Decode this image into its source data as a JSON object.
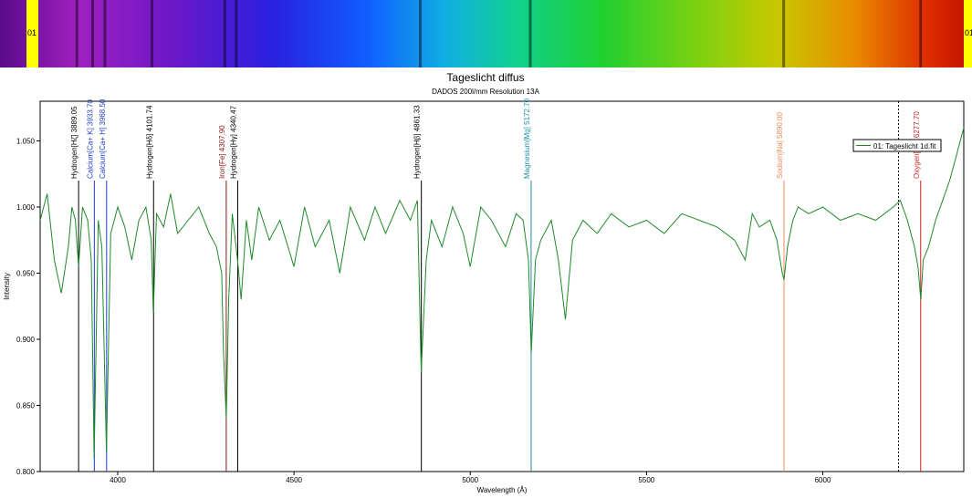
{
  "spectrum_strip": {
    "left_label": "01",
    "right_label": "01",
    "marker_color": "#ffff00"
  },
  "chart_data": {
    "type": "line",
    "title": "Tageslicht diffus",
    "subtitle": "DADOS 200l/mm Resolution 13A",
    "xlabel": "Wavelength (Å)",
    "ylabel": "Intensity",
    "xlim": [
      3780,
      6400
    ],
    "ylim": [
      0.8,
      1.08
    ],
    "x_ticks": [
      4000,
      4500,
      5000,
      5500,
      6000
    ],
    "y_ticks": [
      0.8,
      0.85,
      0.9,
      0.95,
      1.0,
      1.05
    ],
    "grid": false,
    "legend_position": "top-right",
    "series": [
      {
        "name": "01: Tageslicht 1d.fit",
        "color": "#1f8a2a",
        "x": [
          3780,
          3800,
          3820,
          3840,
          3860,
          3870,
          3880,
          3889,
          3900,
          3915,
          3925,
          3933,
          3945,
          3955,
          3968,
          3980,
          4000,
          4020,
          4040,
          4060,
          4080,
          4095,
          4101,
          4110,
          4130,
          4150,
          4170,
          4200,
          4230,
          4260,
          4280,
          4295,
          4300,
          4308,
          4315,
          4325,
          4340,
          4350,
          4365,
          4380,
          4400,
          4430,
          4460,
          4500,
          4530,
          4560,
          4600,
          4630,
          4660,
          4700,
          4730,
          4760,
          4800,
          4830,
          4850,
          4861,
          4875,
          4890,
          4920,
          4950,
          4980,
          5000,
          5030,
          5060,
          5100,
          5130,
          5150,
          5165,
          5173,
          5185,
          5200,
          5230,
          5250,
          5270,
          5290,
          5320,
          5360,
          5400,
          5450,
          5500,
          5550,
          5600,
          5650,
          5700,
          5750,
          5780,
          5800,
          5820,
          5850,
          5870,
          5885,
          5890,
          5900,
          5915,
          5930,
          5960,
          6000,
          6050,
          6100,
          6150,
          6200,
          6220,
          6240,
          6260,
          6270,
          6278,
          6285,
          6300,
          6320,
          6340,
          6360,
          6380,
          6400
        ],
        "y": [
          0.99,
          1.01,
          0.96,
          0.935,
          0.97,
          1.0,
          0.99,
          0.955,
          1.0,
          0.99,
          0.96,
          0.81,
          0.99,
          0.97,
          0.815,
          0.98,
          1.0,
          0.985,
          0.96,
          0.99,
          1.0,
          0.975,
          0.92,
          0.995,
          0.985,
          1.01,
          0.98,
          0.99,
          1.0,
          0.98,
          0.97,
          0.95,
          0.89,
          0.84,
          0.93,
          0.995,
          0.96,
          0.93,
          0.99,
          0.96,
          1.0,
          0.975,
          0.99,
          0.955,
          1.0,
          0.97,
          0.99,
          0.95,
          1.0,
          0.975,
          1.0,
          0.98,
          1.005,
          0.99,
          1.005,
          0.875,
          0.96,
          0.99,
          0.97,
          1.0,
          0.98,
          0.955,
          1.0,
          0.99,
          0.97,
          0.995,
          0.99,
          0.96,
          0.89,
          0.96,
          0.975,
          0.99,
          0.96,
          0.915,
          0.975,
          0.99,
          0.98,
          0.995,
          0.985,
          0.99,
          0.98,
          0.995,
          0.99,
          0.985,
          0.975,
          0.96,
          0.995,
          0.985,
          0.99,
          0.975,
          0.95,
          0.945,
          0.97,
          0.99,
          1.0,
          0.995,
          1.0,
          0.99,
          0.995,
          0.99,
          1.0,
          1.005,
          0.99,
          0.97,
          0.955,
          0.93,
          0.96,
          0.97,
          0.99,
          1.005,
          1.02,
          1.04,
          1.06
        ]
      }
    ],
    "annotations": [
      {
        "label": "Hydrogen[Hζ] 3889.05",
        "x": 3889.05,
        "color": "#000000"
      },
      {
        "label": "Calcium[Ca+ K] 3933.70",
        "x": 3933.7,
        "color": "#1f3fd1"
      },
      {
        "label": "Calcium[Ca+ H] 3968.50",
        "x": 3968.5,
        "color": "#1f3fd1"
      },
      {
        "label": "Hydrogen[Hδ] 4101.74",
        "x": 4101.74,
        "color": "#000000"
      },
      {
        "label": "Iron[Fe] 4307.90",
        "x": 4307.9,
        "color": "#8a1a1a"
      },
      {
        "label": "Hydrogen[Hγ] 4340.47",
        "x": 4340.47,
        "color": "#000000"
      },
      {
        "label": "Hydrogen[Hβ] 4861.33",
        "x": 4861.33,
        "color": "#000000"
      },
      {
        "label": "Magnesium[Mg] 5172.70",
        "x": 5172.7,
        "color": "#1f8fa6"
      },
      {
        "label": "Sodium[Na] 5890.00",
        "x": 5890.0,
        "color": "#f08b5a"
      },
      {
        "label": "Oxygen[O2] 6277.70",
        "x": 6277.7,
        "color": "#d11f1f"
      }
    ],
    "dashed_marker_x": 6215
  }
}
